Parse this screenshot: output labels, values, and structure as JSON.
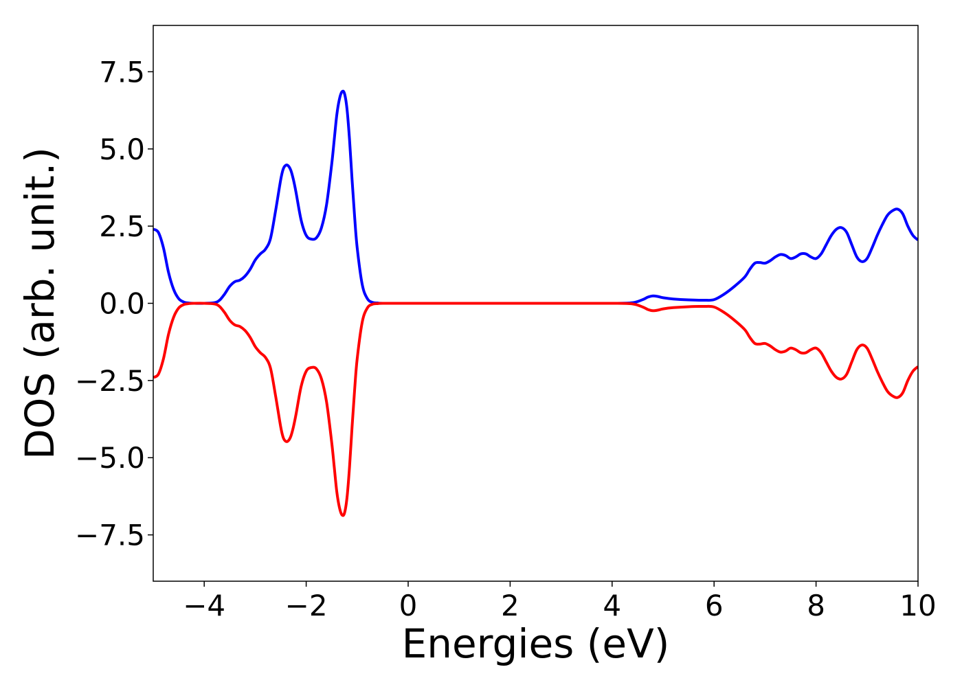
{
  "chart_data": {
    "type": "line",
    "title": "",
    "xlabel": "Energies (eV)",
    "ylabel": "DOS (arb. unit.)",
    "xlim": [
      -5,
      10
    ],
    "ylim": [
      -9,
      9
    ],
    "grid": false,
    "xticks": [
      -4,
      -2,
      0,
      2,
      4,
      6,
      8,
      10
    ],
    "xtick_labels": [
      "−4",
      "−2",
      "0",
      "2",
      "4",
      "6",
      "8",
      "10"
    ],
    "yticks": [
      -7.5,
      -5,
      -2.5,
      0,
      2.5,
      5,
      7.5
    ],
    "ytick_labels": [
      "−7.5",
      "−5.0",
      "−2.5",
      "0.0",
      "2.5",
      "5.0",
      "7.5"
    ],
    "series": [
      {
        "color": "#0000ff",
        "x": [
          -5.0,
          -4.9,
          -4.8,
          -4.7,
          -4.6,
          -4.5,
          -4.4,
          -4.3,
          -4.2,
          -4.0,
          -3.8,
          -3.7,
          -3.6,
          -3.5,
          -3.4,
          -3.3,
          -3.2,
          -3.1,
          -3.0,
          -2.9,
          -2.8,
          -2.7,
          -2.6,
          -2.5,
          -2.45,
          -2.4,
          -2.35,
          -2.3,
          -2.25,
          -2.2,
          -2.1,
          -2.0,
          -1.9,
          -1.8,
          -1.7,
          -1.6,
          -1.5,
          -1.45,
          -1.4,
          -1.35,
          -1.3,
          -1.25,
          -1.2,
          -1.15,
          -1.1,
          -1.05,
          -1.0,
          -0.9,
          -0.8,
          -0.7,
          -0.6,
          -0.5,
          0.0,
          1.0,
          2.0,
          3.0,
          4.0,
          4.4,
          4.6,
          4.7,
          4.8,
          4.9,
          5.0,
          5.2,
          5.5,
          5.8,
          6.0,
          6.2,
          6.4,
          6.6,
          6.7,
          6.8,
          6.9,
          7.0,
          7.1,
          7.2,
          7.3,
          7.4,
          7.5,
          7.6,
          7.7,
          7.8,
          7.9,
          8.0,
          8.1,
          8.2,
          8.3,
          8.4,
          8.5,
          8.6,
          8.7,
          8.8,
          8.9,
          9.0,
          9.1,
          9.2,
          9.3,
          9.4,
          9.5,
          9.6,
          9.7,
          9.8,
          9.9,
          10.0
        ],
        "y": [
          2.4,
          2.3,
          1.8,
          1.0,
          0.45,
          0.15,
          0.04,
          0.01,
          0.0,
          0.0,
          0.02,
          0.1,
          0.3,
          0.55,
          0.7,
          0.75,
          0.88,
          1.1,
          1.4,
          1.6,
          1.75,
          2.1,
          3.0,
          4.0,
          4.35,
          4.47,
          4.45,
          4.3,
          4.0,
          3.6,
          2.7,
          2.2,
          2.08,
          2.12,
          2.45,
          3.2,
          4.5,
          5.3,
          6.1,
          6.6,
          6.85,
          6.8,
          6.3,
          5.3,
          4.0,
          2.8,
          1.8,
          0.6,
          0.15,
          0.03,
          0.01,
          0.0,
          0.0,
          0.0,
          0.0,
          0.0,
          0.0,
          0.02,
          0.12,
          0.2,
          0.24,
          0.22,
          0.18,
          0.14,
          0.11,
          0.1,
          0.12,
          0.3,
          0.55,
          0.85,
          1.1,
          1.3,
          1.32,
          1.3,
          1.38,
          1.5,
          1.58,
          1.55,
          1.45,
          1.5,
          1.6,
          1.6,
          1.5,
          1.45,
          1.6,
          1.9,
          2.2,
          2.4,
          2.45,
          2.3,
          1.9,
          1.5,
          1.35,
          1.45,
          1.8,
          2.2,
          2.55,
          2.85,
          3.0,
          3.05,
          2.9,
          2.5,
          2.2,
          2.05
        ]
      },
      {
        "color": "#ff0000",
        "x": [
          -5.0,
          -4.9,
          -4.8,
          -4.7,
          -4.6,
          -4.5,
          -4.4,
          -4.3,
          -4.2,
          -4.0,
          -3.8,
          -3.7,
          -3.6,
          -3.5,
          -3.4,
          -3.3,
          -3.2,
          -3.1,
          -3.0,
          -2.9,
          -2.8,
          -2.7,
          -2.6,
          -2.5,
          -2.45,
          -2.4,
          -2.35,
          -2.3,
          -2.25,
          -2.2,
          -2.1,
          -2.0,
          -1.9,
          -1.8,
          -1.7,
          -1.6,
          -1.5,
          -1.45,
          -1.4,
          -1.35,
          -1.3,
          -1.25,
          -1.2,
          -1.15,
          -1.1,
          -1.05,
          -1.0,
          -0.9,
          -0.8,
          -0.7,
          -0.6,
          -0.5,
          0.0,
          1.0,
          2.0,
          3.0,
          4.0,
          4.4,
          4.6,
          4.7,
          4.8,
          4.9,
          5.0,
          5.2,
          5.5,
          5.8,
          6.0,
          6.2,
          6.4,
          6.6,
          6.7,
          6.8,
          6.9,
          7.0,
          7.1,
          7.2,
          7.3,
          7.4,
          7.5,
          7.6,
          7.7,
          7.8,
          7.9,
          8.0,
          8.1,
          8.2,
          8.3,
          8.4,
          8.5,
          8.6,
          8.7,
          8.8,
          8.9,
          9.0,
          9.1,
          9.2,
          9.3,
          9.4,
          9.5,
          9.6,
          9.7,
          9.8,
          9.9,
          10.0
        ],
        "y": [
          -2.4,
          -2.3,
          -1.8,
          -1.0,
          -0.45,
          -0.15,
          -0.04,
          -0.01,
          0.0,
          0.0,
          -0.02,
          -0.1,
          -0.3,
          -0.55,
          -0.7,
          -0.75,
          -0.88,
          -1.1,
          -1.4,
          -1.6,
          -1.75,
          -2.1,
          -3.0,
          -4.0,
          -4.35,
          -4.47,
          -4.45,
          -4.3,
          -4.0,
          -3.6,
          -2.7,
          -2.2,
          -2.08,
          -2.12,
          -2.45,
          -3.2,
          -4.5,
          -5.3,
          -6.1,
          -6.6,
          -6.85,
          -6.8,
          -6.3,
          -5.3,
          -4.0,
          -2.8,
          -1.8,
          -0.6,
          -0.15,
          -0.03,
          -0.01,
          0.0,
          0.0,
          0.0,
          0.0,
          0.0,
          0.0,
          -0.02,
          -0.12,
          -0.2,
          -0.24,
          -0.22,
          -0.18,
          -0.14,
          -0.11,
          -0.1,
          -0.12,
          -0.3,
          -0.55,
          -0.85,
          -1.1,
          -1.3,
          -1.32,
          -1.3,
          -1.38,
          -1.5,
          -1.58,
          -1.55,
          -1.45,
          -1.5,
          -1.6,
          -1.6,
          -1.5,
          -1.45,
          -1.6,
          -1.9,
          -2.2,
          -2.4,
          -2.45,
          -2.3,
          -1.9,
          -1.5,
          -1.35,
          -1.45,
          -1.8,
          -2.2,
          -2.55,
          -2.85,
          -3.0,
          -3.05,
          -2.9,
          -2.5,
          -2.2,
          -2.05
        ]
      }
    ]
  }
}
